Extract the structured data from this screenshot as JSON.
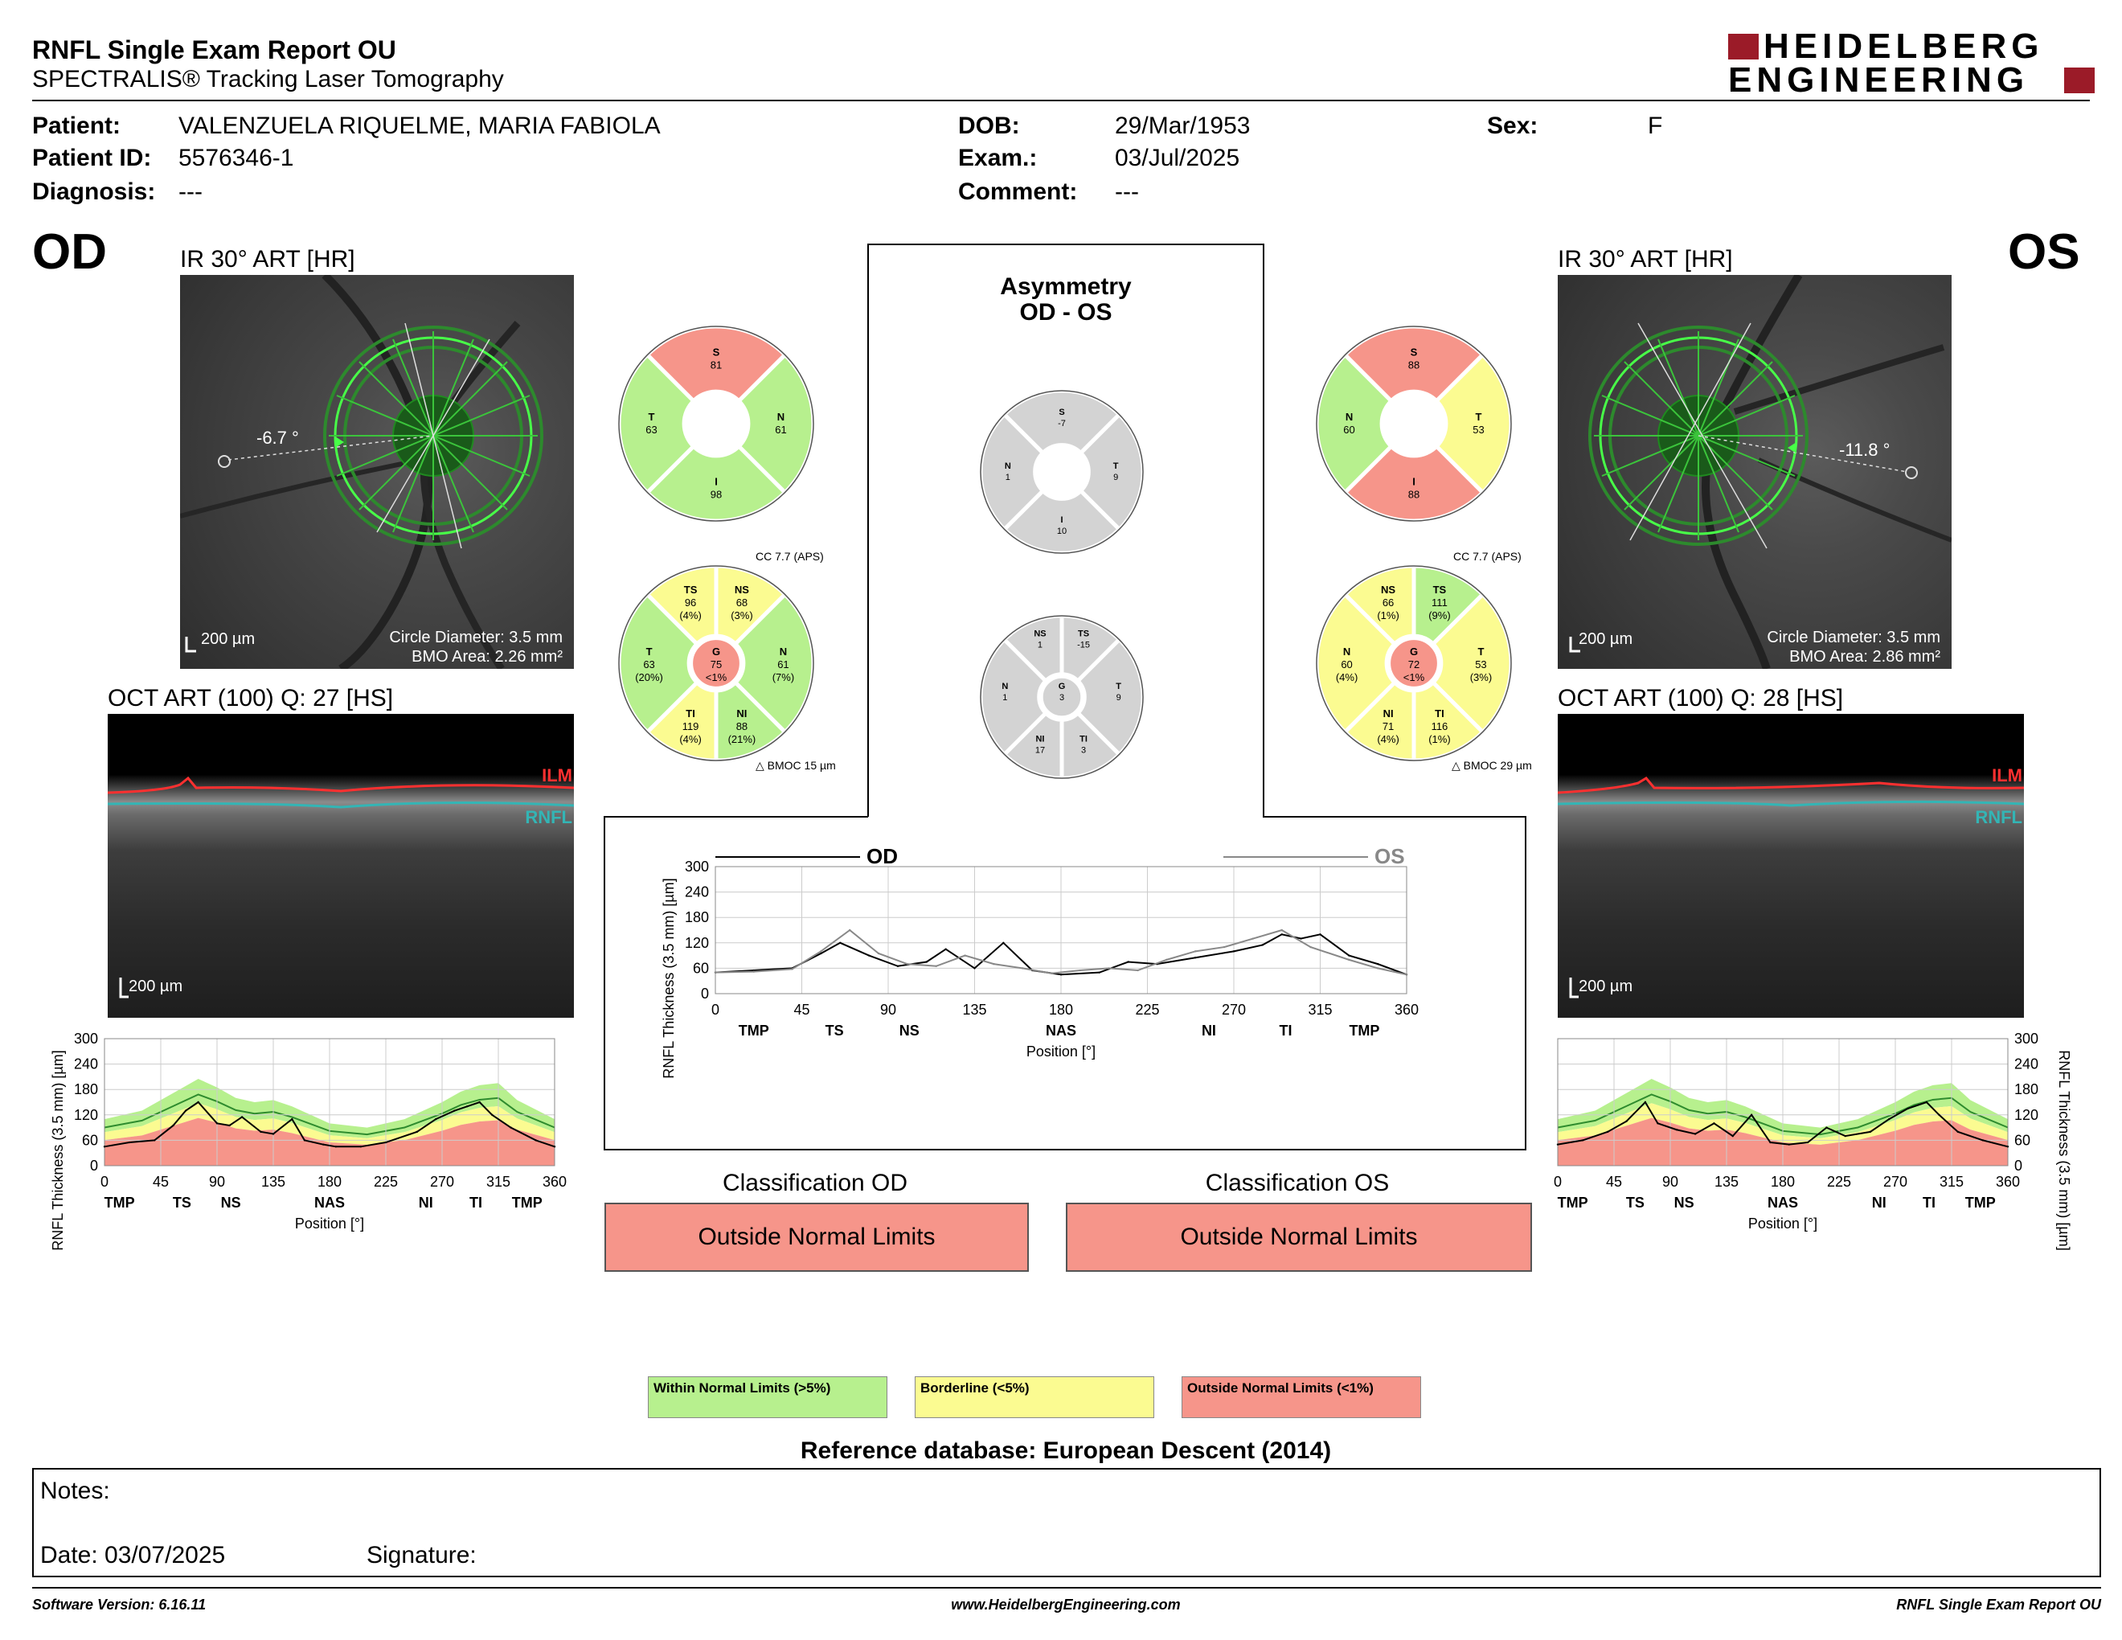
{
  "header": {
    "title": "RNFL Single Exam Report OU",
    "subtitle": "SPECTRALIS® Tracking Laser Tomography",
    "logo_line1": "HEIDELBERG",
    "logo_line2": "ENGINEERING"
  },
  "patient": {
    "patient_label": "Patient:",
    "patient_value": "VALENZUELA RIQUELME, MARIA FABIOLA",
    "id_label": "Patient ID:",
    "id_value": "5576346-1",
    "diagnosis_label": "Diagnosis:",
    "diagnosis_value": "---",
    "dob_label": "DOB:",
    "dob_value": "29/Mar/1953",
    "exam_label": "Exam.:",
    "exam_value": "03/Jul/2025",
    "comment_label": "Comment:",
    "comment_value": "---",
    "sex_label": "Sex:",
    "sex_value": "F"
  },
  "od": {
    "eye": "OD",
    "ir_title": "IR 30° ART [HR]",
    "angle": "-6.7 °",
    "scale": "200 µm",
    "circle": "Circle Diameter: 3.5 mm",
    "bmo": "BMO Area: 2.26 mm²",
    "oct_title": "OCT ART (100) Q: 27 [HS]",
    "oct_scale": "200 µm",
    "ilm": "ILM",
    "rnfl": "RNFL",
    "classification_title": "Classification OD",
    "classification": "Outside Normal Limits",
    "cc": "CC 7.7 (APS)",
    "bmoc": "BMOC 15 µm"
  },
  "os": {
    "eye": "OS",
    "ir_title": "IR 30° ART [HR]",
    "angle": "-11.8 °",
    "scale": "200 µm",
    "circle": "Circle Diameter: 3.5 mm",
    "bmo": "BMO Area: 2.86 mm²",
    "oct_title": "OCT ART (100) Q: 28 [HS]",
    "oct_scale": "200 µm",
    "ilm": "ILM",
    "rnfl": "RNFL",
    "classification_title": "Classification OS",
    "classification": "Outside Normal Limits",
    "cc": "CC 7.7 (APS)",
    "bmoc": "BMOC 29 µm"
  },
  "quad_od": [
    {
      "label": "S",
      "value": "81",
      "status": "red"
    },
    {
      "label": "N",
      "value": "61",
      "status": "green"
    },
    {
      "label": "I",
      "value": "98",
      "status": "green"
    },
    {
      "label": "T",
      "value": "63",
      "status": "green"
    }
  ],
  "quad_os": [
    {
      "label": "S",
      "value": "88",
      "status": "red"
    },
    {
      "label": "T",
      "value": "53",
      "status": "yellow"
    },
    {
      "label": "I",
      "value": "88",
      "status": "red"
    },
    {
      "label": "N",
      "value": "60",
      "status": "green"
    }
  ],
  "quad_asym": [
    {
      "label": "S",
      "value": "-7",
      "status": "gray"
    },
    {
      "label": "T",
      "value": "9",
      "status": "gray"
    },
    {
      "label": "I",
      "value": "10",
      "status": "gray"
    },
    {
      "label": "N",
      "value": "1",
      "status": "gray"
    }
  ],
  "sect_od": {
    "center": {
      "label": "G",
      "value": "75",
      "pct": "<1%",
      "status": "red"
    },
    "sectors": [
      {
        "label": "NS",
        "value": "68",
        "pct": "(3%)",
        "status": "yellow"
      },
      {
        "label": "N",
        "value": "61",
        "pct": "(7%)",
        "status": "green"
      },
      {
        "label": "NI",
        "value": "88",
        "pct": "(21%)",
        "status": "green"
      },
      {
        "label": "TI",
        "value": "119",
        "pct": "(4%)",
        "status": "yellow"
      },
      {
        "label": "T",
        "value": "63",
        "pct": "(20%)",
        "status": "green"
      },
      {
        "label": "TS",
        "value": "96",
        "pct": "(4%)",
        "status": "yellow"
      }
    ]
  },
  "sect_os": {
    "center": {
      "label": "G",
      "value": "72",
      "pct": "<1%",
      "status": "red"
    },
    "sectors": [
      {
        "label": "TS",
        "value": "111",
        "pct": "(9%)",
        "status": "green"
      },
      {
        "label": "T",
        "value": "53",
        "pct": "(3%)",
        "status": "yellow"
      },
      {
        "label": "TI",
        "value": "116",
        "pct": "(1%)",
        "status": "yellow"
      },
      {
        "label": "NI",
        "value": "71",
        "pct": "(4%)",
        "status": "yellow"
      },
      {
        "label": "N",
        "value": "60",
        "pct": "(4%)",
        "status": "yellow"
      },
      {
        "label": "NS",
        "value": "66",
        "pct": "(1%)",
        "status": "yellow"
      }
    ]
  },
  "sect_asym": {
    "center": {
      "label": "G",
      "value": "3",
      "pct": "",
      "status": "gray"
    },
    "sectors": [
      {
        "label": "TS",
        "value": "-15",
        "pct": "",
        "status": "gray"
      },
      {
        "label": "T",
        "value": "9",
        "pct": "",
        "status": "gray"
      },
      {
        "label": "TI",
        "value": "3",
        "pct": "",
        "status": "gray"
      },
      {
        "label": "NI",
        "value": "17",
        "pct": "",
        "status": "gray"
      },
      {
        "label": "N",
        "value": "1",
        "pct": "",
        "status": "gray"
      },
      {
        "label": "NS",
        "value": "1",
        "pct": "",
        "status": "gray"
      }
    ]
  },
  "asymmetry": {
    "title1": "Asymmetry",
    "title2": "OD - OS",
    "od_label": "OD",
    "os_label": "OS"
  },
  "colors": {
    "green": "#b7f08e",
    "yellow": "#fbfb91",
    "red": "#f6958a",
    "gray": "#d3d3d3"
  },
  "legend": {
    "green": "Within Normal Limits (>5%)",
    "yellow": "Borderline (<5%)",
    "red": "Outside Normal Limits (<1%)"
  },
  "reference": "Reference database: European Descent (2014)",
  "notes": {
    "notes_label": "Notes:",
    "date_label": "Date: 03/07/2025",
    "signature_label": "Signature:"
  },
  "footer": {
    "left": "Software Version: 6.16.11",
    "center": "www.HeidelbergEngineering.com",
    "right": "RNFL Single Exam Report OU"
  },
  "chart_data": [
    {
      "type": "line",
      "title": "",
      "xlabel": "Position [°]",
      "ylabel": "RNFL Thickness (3.5 mm) [µm]",
      "xlim": [
        0,
        360
      ],
      "ylim": [
        0,
        300
      ],
      "xticks": [
        0,
        45,
        90,
        135,
        180,
        225,
        270,
        315,
        360
      ],
      "yticks": [
        0,
        60,
        120,
        180,
        240,
        300
      ],
      "sector_labels": [
        {
          "label": "TMP",
          "x": 12
        },
        {
          "label": "TS",
          "x": 62
        },
        {
          "label": "NS",
          "x": 101
        },
        {
          "label": "NAS",
          "x": 180
        },
        {
          "label": "NI",
          "x": 257
        },
        {
          "label": "TI",
          "x": 297
        },
        {
          "label": "TMP",
          "x": 338
        }
      ],
      "series": [
        {
          "name": "OD",
          "x": [
            0,
            20,
            40,
            55,
            65,
            75,
            90,
            100,
            110,
            125,
            135,
            150,
            160,
            175,
            185,
            205,
            225,
            250,
            265,
            280,
            290,
            300,
            310,
            325,
            345,
            360
          ],
          "values": [
            45,
            55,
            60,
            95,
            130,
            150,
            100,
            95,
            115,
            80,
            75,
            110,
            60,
            50,
            45,
            45,
            55,
            80,
            110,
            130,
            140,
            150,
            120,
            90,
            60,
            45
          ]
        }
      ]
    },
    {
      "type": "line",
      "title": "",
      "xlabel": "Position [°]",
      "ylabel": "RNFL Thickness (3.5 mm) [µm]",
      "xlim": [
        0,
        360
      ],
      "ylim": [
        0,
        300
      ],
      "xticks": [
        0,
        45,
        90,
        135,
        180,
        225,
        270,
        315,
        360
      ],
      "yticks": [
        0,
        60,
        120,
        180,
        240,
        300
      ],
      "sector_labels": [
        {
          "label": "TMP",
          "x": 20
        },
        {
          "label": "TS",
          "x": 62
        },
        {
          "label": "NS",
          "x": 101
        },
        {
          "label": "NAS",
          "x": 180
        },
        {
          "label": "NI",
          "x": 257
        },
        {
          "label": "TI",
          "x": 297
        },
        {
          "label": "TMP",
          "x": 338
        }
      ],
      "series": [
        {
          "name": "OD",
          "x": [
            0,
            20,
            40,
            55,
            65,
            80,
            95,
            110,
            120,
            135,
            150,
            165,
            180,
            200,
            215,
            230,
            250,
            270,
            285,
            295,
            305,
            315,
            330,
            345,
            360
          ],
          "values": [
            50,
            55,
            60,
            95,
            120,
            90,
            65,
            75,
            105,
            60,
            120,
            55,
            45,
            50,
            75,
            70,
            85,
            100,
            115,
            140,
            130,
            140,
            90,
            70,
            45
          ]
        },
        {
          "name": "OS",
          "x": [
            0,
            20,
            40,
            55,
            70,
            85,
            100,
            115,
            130,
            145,
            160,
            175,
            190,
            205,
            220,
            235,
            250,
            265,
            280,
            295,
            310,
            330,
            345,
            360
          ],
          "values": [
            50,
            52,
            58,
            100,
            150,
            95,
            70,
            65,
            90,
            70,
            60,
            48,
            55,
            60,
            55,
            80,
            100,
            110,
            130,
            150,
            110,
            80,
            60,
            45
          ]
        }
      ]
    },
    {
      "type": "line",
      "title": "",
      "xlabel": "Position [°]",
      "ylabel": "RNFL Thickness (3.5 mm) [µm]",
      "xlim": [
        0,
        360
      ],
      "ylim": [
        0,
        300
      ],
      "xticks": [
        0,
        45,
        90,
        135,
        180,
        225,
        270,
        315,
        360
      ],
      "yticks": [
        0,
        60,
        120,
        180,
        240,
        300
      ],
      "sector_labels": [
        {
          "label": "TMP",
          "x": 12
        },
        {
          "label": "TS",
          "x": 62
        },
        {
          "label": "NS",
          "x": 101
        },
        {
          "label": "NAS",
          "x": 180
        },
        {
          "label": "NI",
          "x": 257
        },
        {
          "label": "TI",
          "x": 297
        },
        {
          "label": "TMP",
          "x": 338
        }
      ],
      "series": [
        {
          "name": "OS",
          "x": [
            0,
            20,
            40,
            55,
            70,
            80,
            95,
            110,
            125,
            140,
            155,
            170,
            185,
            200,
            215,
            230,
            250,
            265,
            280,
            295,
            305,
            320,
            340,
            360
          ],
          "values": [
            50,
            60,
            80,
            105,
            150,
            100,
            85,
            75,
            100,
            70,
            120,
            55,
            50,
            55,
            90,
            70,
            80,
            110,
            135,
            150,
            120,
            80,
            60,
            45
          ]
        }
      ]
    }
  ]
}
